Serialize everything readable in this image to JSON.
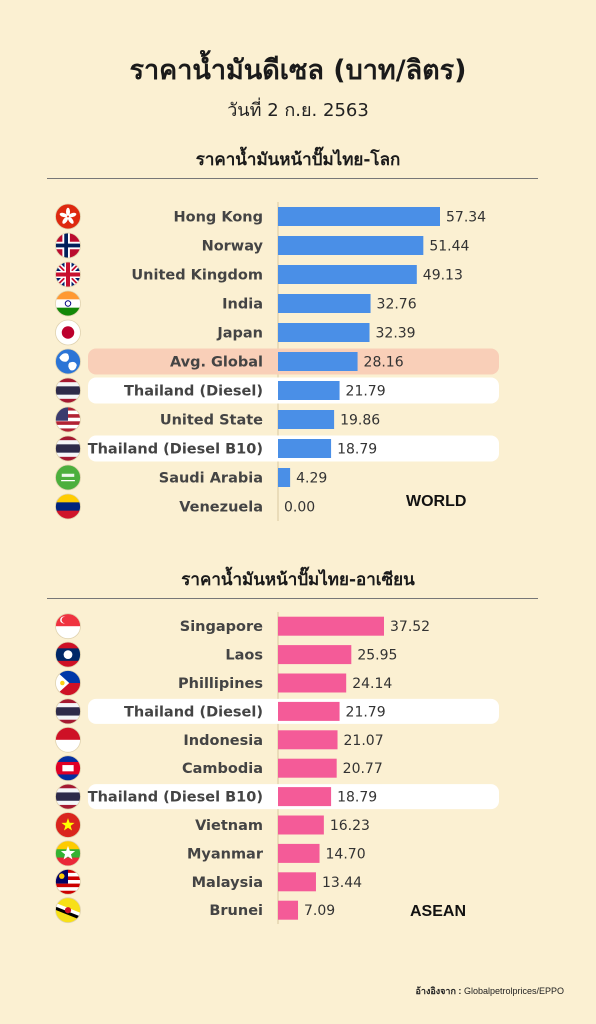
{
  "header": {
    "title": "ราคาน้ำมันดีเซล (บาท/ลิตร)",
    "subtitle": "วันที่ 2 ก.ย. 2563"
  },
  "world": {
    "heading": "ราคาน้ำมันหน้าปั๊มไทย-โลก",
    "tag": "WORLD"
  },
  "asean": {
    "heading": "ราคาน้ำมันหน้าปั๊มไทย-อาเซียน",
    "tag": "ASEAN"
  },
  "source": {
    "label": "อ้างอิงจาก :",
    "text": "Globalpetrolprices/EPPO"
  },
  "colors": {
    "background": "#fbf0d2",
    "world_bar": "#4a8fe7",
    "asean_bar": "#f45b98",
    "highlight_global": "#f9cfb8",
    "highlight_thai": "#ffffff"
  },
  "chart_data": [
    {
      "type": "bar",
      "orientation": "horizontal",
      "categories": [
        "Hong Kong",
        "Norway",
        "United Kingdom",
        "India",
        "Japan",
        "Avg. Global",
        "Thailand (Diesel)",
        "United State",
        "Thailand (Diesel B10)",
        "Saudi Arabia",
        "Venezuela"
      ],
      "values": [
        57.34,
        51.44,
        49.13,
        32.76,
        32.39,
        28.16,
        21.79,
        19.86,
        18.79,
        4.29,
        0.0
      ],
      "value_labels": [
        "57.34",
        "51.44",
        "49.13",
        "32.76",
        "32.39",
        "28.16",
        "21.79",
        "19.86",
        "18.79",
        "4.29",
        "0.00"
      ],
      "icons": [
        "hong-kong-flag-icon",
        "norway-flag-icon",
        "uk-flag-icon",
        "india-flag-icon",
        "japan-flag-icon",
        "globe-icon",
        "thailand-flag-icon",
        "usa-flag-icon",
        "thailand-flag-icon",
        "saudi-arabia-flag-icon",
        "venezuela-flag-icon"
      ],
      "highlights": [
        "none",
        "none",
        "none",
        "none",
        "none",
        "global",
        "thai",
        "none",
        "thai",
        "none",
        "none"
      ],
      "xlim": [
        0,
        57.34
      ]
    },
    {
      "type": "bar",
      "orientation": "horizontal",
      "categories": [
        "Singapore",
        "Laos",
        "Phillipines",
        "Thailand (Diesel)",
        "Indonesia",
        "Cambodia",
        "Thailand (Diesel B10)",
        "Vietnam",
        "Myanmar",
        "Malaysia",
        "Brunei"
      ],
      "values": [
        37.52,
        25.95,
        24.14,
        21.79,
        21.07,
        20.77,
        18.79,
        16.23,
        14.7,
        13.44,
        7.09
      ],
      "value_labels": [
        "37.52",
        "25.95",
        "24.14",
        "21.79",
        "21.07",
        "20.77",
        "18.79",
        "16.23",
        "14.70",
        "13.44",
        "7.09"
      ],
      "icons": [
        "singapore-flag-icon",
        "laos-flag-icon",
        "philippines-flag-icon",
        "thailand-flag-icon",
        "indonesia-flag-icon",
        "cambodia-flag-icon",
        "thailand-flag-icon",
        "vietnam-flag-icon",
        "myanmar-flag-icon",
        "malaysia-flag-icon",
        "brunei-flag-icon"
      ],
      "highlights": [
        "none",
        "none",
        "none",
        "thai",
        "none",
        "none",
        "thai",
        "none",
        "none",
        "none",
        "none"
      ],
      "xlim": [
        0,
        57.34
      ]
    }
  ]
}
